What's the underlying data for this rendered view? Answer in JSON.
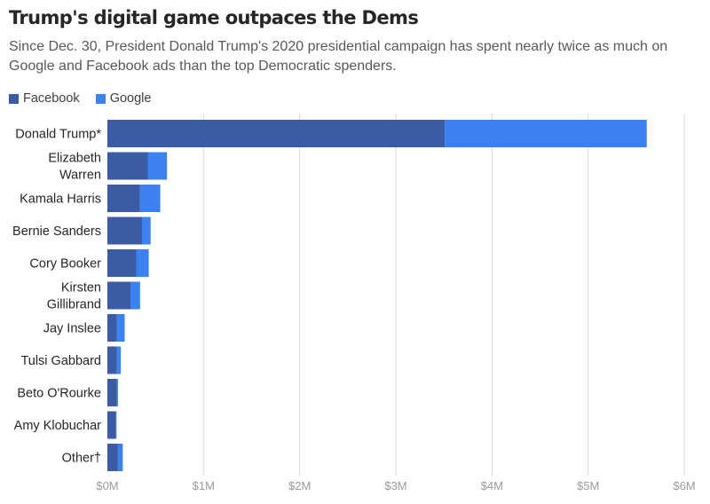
{
  "title": "Trump's digital game outpaces the Dems",
  "subtitle": "Since Dec. 30, President Donald Trump's 2020 presidential campaign has spent nearly twice as much on Google and Facebook ads than the top Democratic spenders.",
  "colors": {
    "facebook": "#3b5ba5",
    "google": "#3b82f0",
    "gridline": "#d9d9d9",
    "tick_label": "#9a9a9a",
    "category_label": "#262626"
  },
  "chart_data": {
    "type": "bar",
    "orientation": "horizontal",
    "stacked": true,
    "title": "Trump's digital game outpaces the Dems",
    "subtitle": "Since Dec. 30, President Donald Trump's 2020 presidential campaign has spent nearly twice as much on Google and Facebook ads than the top Democratic spenders.",
    "xlabel": "",
    "ylabel": "",
    "legend": "top-left",
    "grid": true,
    "categories": [
      "Donald Trump*",
      "Elizabeth Warren",
      "Kamala Harris",
      "Bernie Sanders",
      "Cory Booker",
      "Kirsten Gillibrand",
      "Jay Inslee",
      "Tulsi Gabbard",
      "Beto O'Rourke",
      "Amy Klobuchar",
      "Other†"
    ],
    "category_lines": [
      [
        "Donald Trump*"
      ],
      [
        "Elizabeth",
        "Warren"
      ],
      [
        "Kamala Harris"
      ],
      [
        "Bernie Sanders"
      ],
      [
        "Cory Booker"
      ],
      [
        "Kirsten",
        "Gillibrand"
      ],
      [
        "Jay Inslee"
      ],
      [
        "Tulsi Gabbard"
      ],
      [
        "Beto O'Rourke"
      ],
      [
        "Amy Klobuchar"
      ],
      [
        "Other†"
      ]
    ],
    "series": [
      {
        "name": "Facebook",
        "color": "#3b5ba5",
        "values": [
          3510000,
          420000,
          340000,
          360000,
          300000,
          240000,
          100000,
          100000,
          100000,
          90000,
          110000
        ]
      },
      {
        "name": "Google",
        "color": "#3b82f0",
        "values": [
          2100000,
          200000,
          210000,
          90000,
          130000,
          100000,
          80000,
          40000,
          10000,
          5000,
          50000
        ]
      }
    ],
    "xlim": [
      0,
      6000000
    ],
    "xticks": [
      {
        "value": 0,
        "label": "$0M"
      },
      {
        "value": 1000000,
        "label": "$1M"
      },
      {
        "value": 2000000,
        "label": "$2M"
      },
      {
        "value": 3000000,
        "label": "$3M"
      },
      {
        "value": 4000000,
        "label": "$4M"
      },
      {
        "value": 5000000,
        "label": "$5M"
      },
      {
        "value": 6000000,
        "label": "$6M"
      }
    ]
  }
}
